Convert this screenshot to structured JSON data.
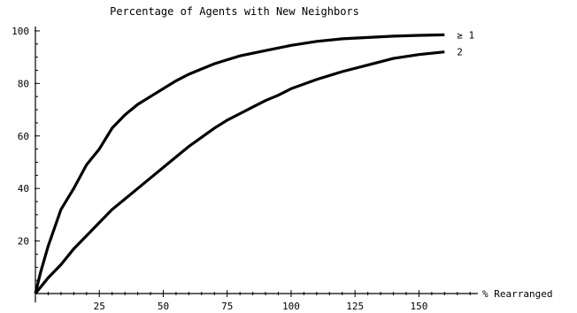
{
  "chart_data": {
    "type": "line",
    "title": "Percentage of Agents with New Neighbors",
    "xlabel": "% Rearranged",
    "ylabel": "",
    "xlim": [
      0,
      172
    ],
    "ylim": [
      0,
      102
    ],
    "x_ticks": [
      25,
      50,
      75,
      100,
      125,
      150
    ],
    "y_ticks": [
      20,
      40,
      60,
      80,
      100
    ],
    "grid": false,
    "legend": "inline labels at right end of each curve",
    "series": [
      {
        "name": "≥ 1",
        "x": [
          0,
          2,
          5,
          10,
          15,
          20,
          25,
          30,
          35,
          40,
          45,
          50,
          55,
          60,
          65,
          70,
          75,
          80,
          85,
          90,
          100,
          110,
          120,
          130,
          140,
          150,
          160
        ],
        "y": [
          0,
          8,
          18,
          32,
          40,
          49,
          55,
          63,
          68,
          72,
          75,
          78,
          81,
          83.5,
          85.5,
          87.5,
          89,
          90.5,
          91.5,
          92.5,
          94.5,
          96,
          97,
          97.5,
          98,
          98.3,
          98.5
        ]
      },
      {
        "name": "2",
        "x": [
          0,
          5,
          10,
          15,
          20,
          25,
          30,
          35,
          40,
          45,
          50,
          55,
          60,
          65,
          70,
          75,
          80,
          85,
          90,
          95,
          100,
          110,
          120,
          130,
          140,
          150,
          160
        ],
        "y": [
          0,
          6,
          11,
          17,
          22,
          27,
          32,
          36,
          40,
          44,
          48,
          52,
          56,
          59.5,
          63,
          66,
          68.5,
          71,
          73.5,
          75.5,
          78,
          81.5,
          84.5,
          87,
          89.5,
          91,
          92
        ]
      }
    ]
  }
}
